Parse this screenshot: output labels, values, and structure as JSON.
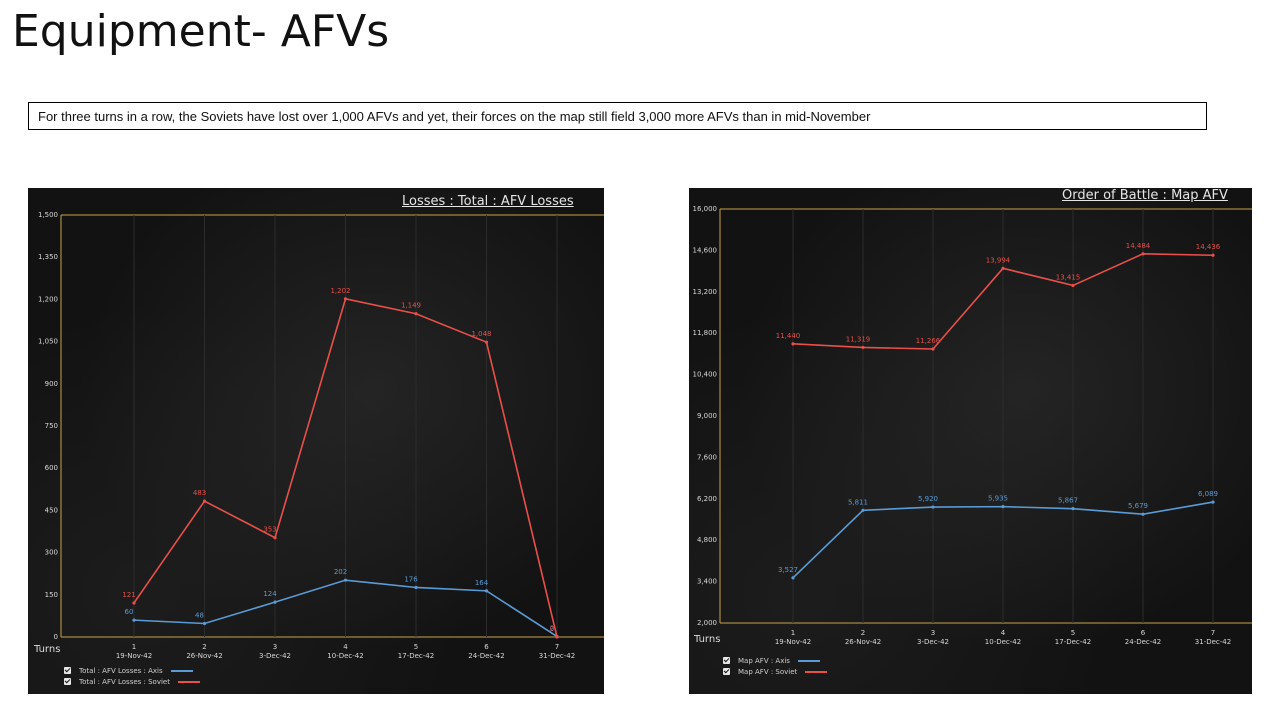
{
  "slide": {
    "title": "Equipment- AFVs",
    "note": "For three turns in a row, the Soviets have lost over 1,000 AFVs and yet, their forces on the map still field 3,000 more AFVs than in mid-November"
  },
  "chart_data": [
    {
      "type": "line",
      "title": "Losses : Total : AFV Losses",
      "xlabel": "Turns",
      "x_turns": [
        "1",
        "2",
        "3",
        "4",
        "5",
        "6",
        "7"
      ],
      "x_dates": [
        "19-Nov-42",
        "26-Nov-42",
        "3-Dec-42",
        "10-Dec-42",
        "17-Dec-42",
        "24-Dec-42",
        "31-Dec-42"
      ],
      "ylim": [
        0,
        1500
      ],
      "yticks": [
        0,
        150,
        300,
        450,
        600,
        750,
        900,
        1050,
        1200,
        1350,
        1500
      ],
      "ytick_labels": [
        "0",
        "150",
        "300",
        "450",
        "600",
        "750",
        "900",
        "1,050",
        "1,200",
        "1,350",
        "1,500"
      ],
      "grid": true,
      "legend_position": "bottom-left",
      "series": [
        {
          "name": "Total : AFV Losses : Axis",
          "color": "#5b9bd5",
          "values": [
            60,
            48,
            124,
            202,
            176,
            164,
            2
          ],
          "labels": [
            "60",
            "48",
            "124",
            "202",
            "176",
            "164",
            "2"
          ]
        },
        {
          "name": "Total : AFV Losses : Soviet",
          "color": "#e8504a",
          "values": [
            121,
            483,
            353,
            1202,
            1149,
            1048,
            0
          ],
          "labels": [
            "121",
            "483",
            "353",
            "1,202",
            "1,149",
            "1,048",
            "0"
          ]
        }
      ]
    },
    {
      "type": "line",
      "title": "Order of Battle : Map AFV",
      "xlabel": "Turns",
      "x_turns": [
        "1",
        "2",
        "3",
        "4",
        "5",
        "6",
        "7"
      ],
      "x_dates": [
        "19-Nov-42",
        "26-Nov-42",
        "3-Dec-42",
        "10-Dec-42",
        "17-Dec-42",
        "24-Dec-42",
        "31-Dec-42"
      ],
      "ylim": [
        2000,
        16000
      ],
      "yticks": [
        2000,
        3400,
        4800,
        6200,
        7600,
        9000,
        10400,
        11800,
        13200,
        14600,
        16000
      ],
      "ytick_labels": [
        "2,000",
        "3,400",
        "4,800",
        "6,200",
        "7,600",
        "9,000",
        "10,400",
        "11,800",
        "13,200",
        "14,600",
        "16,000"
      ],
      "grid": true,
      "legend_position": "bottom-left",
      "series": [
        {
          "name": "Map AFV : Axis",
          "color": "#5b9bd5",
          "values": [
            3527,
            5811,
            5920,
            5935,
            5867,
            5679,
            6089
          ],
          "labels": [
            "3,527",
            "5,811",
            "5,920",
            "5,935",
            "5,867",
            "5,679",
            "6,089"
          ]
        },
        {
          "name": "Map AFV : Soviet",
          "color": "#e8504a",
          "values": [
            11440,
            11319,
            11266,
            13994,
            13415,
            14484,
            14436
          ],
          "labels": [
            "11,440",
            "11,319",
            "11,266",
            "13,994",
            "13,415",
            "14,484",
            "14,436"
          ]
        }
      ]
    }
  ]
}
